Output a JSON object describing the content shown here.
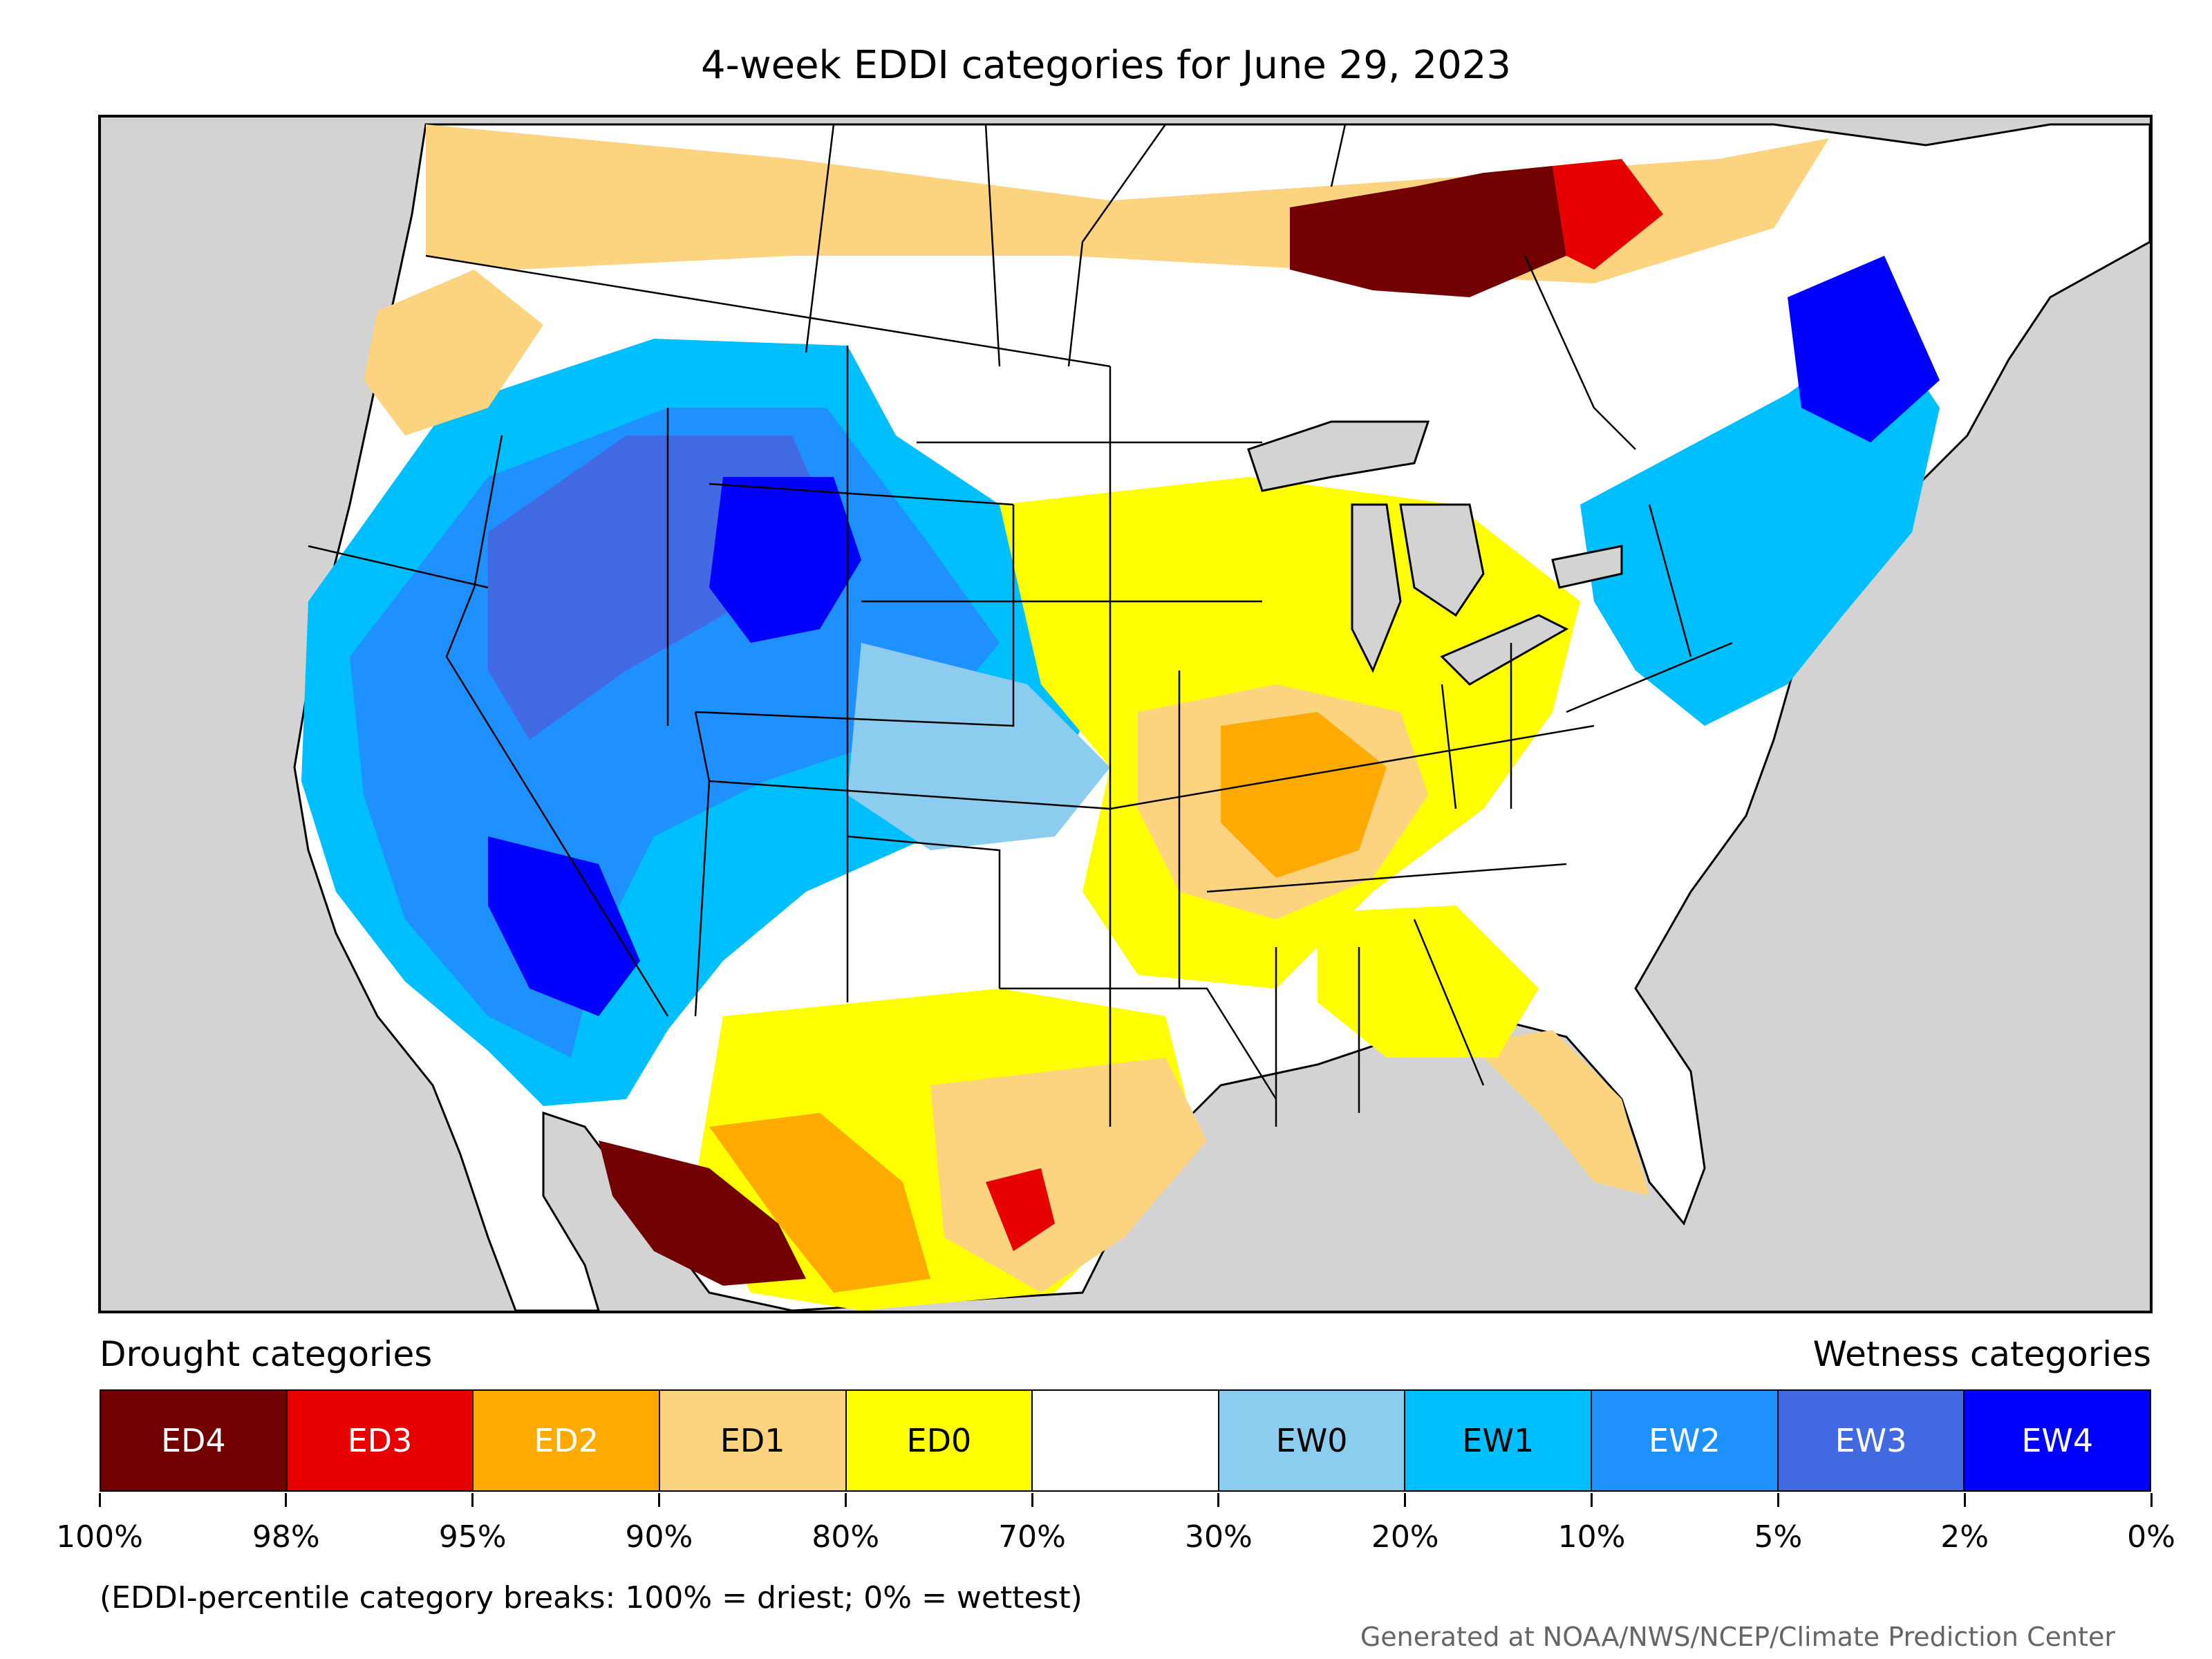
{
  "title": "4-week EDDI categories for June 29, 2023",
  "legend": {
    "drought_heading": "Drought categories",
    "wetness_heading": "Wetness categories",
    "categories": [
      {
        "label": "ED4",
        "color": "#730000",
        "text_color": "#ffffff"
      },
      {
        "label": "ED3",
        "color": "#e60000",
        "text_color": "#ffffff"
      },
      {
        "label": "ED2",
        "color": "#ffaa00",
        "text_color": "#ffffff"
      },
      {
        "label": "ED1",
        "color": "#fcd37f",
        "text_color": "#000000"
      },
      {
        "label": "ED0",
        "color": "#ffff00",
        "text_color": "#000000"
      },
      {
        "label": "",
        "color": "#ffffff",
        "text_color": "#000000"
      },
      {
        "label": "EW0",
        "color": "#8ccdef",
        "text_color": "#000000"
      },
      {
        "label": "EW1",
        "color": "#00bfff",
        "text_color": "#000000"
      },
      {
        "label": "EW2",
        "color": "#1e90ff",
        "text_color": "#ffffff"
      },
      {
        "label": "EW3",
        "color": "#4169e1",
        "text_color": "#ffffff"
      },
      {
        "label": "EW4",
        "color": "#0000ff",
        "text_color": "#ffffff"
      }
    ],
    "tick_labels": [
      "100%",
      "98%",
      "95%",
      "90%",
      "80%",
      "70%",
      "30%",
      "20%",
      "10%",
      "5%",
      "2%",
      "0%"
    ]
  },
  "footnote": "(EDDI-percentile category breaks: 100% = driest; 0% = wettest)",
  "credit": "Generated at NOAA/NWS/NCEP/Climate Prediction Center",
  "map": {
    "background_color": "#d3d3d3",
    "land_color": "#ffffff",
    "border_color": "#000000"
  }
}
